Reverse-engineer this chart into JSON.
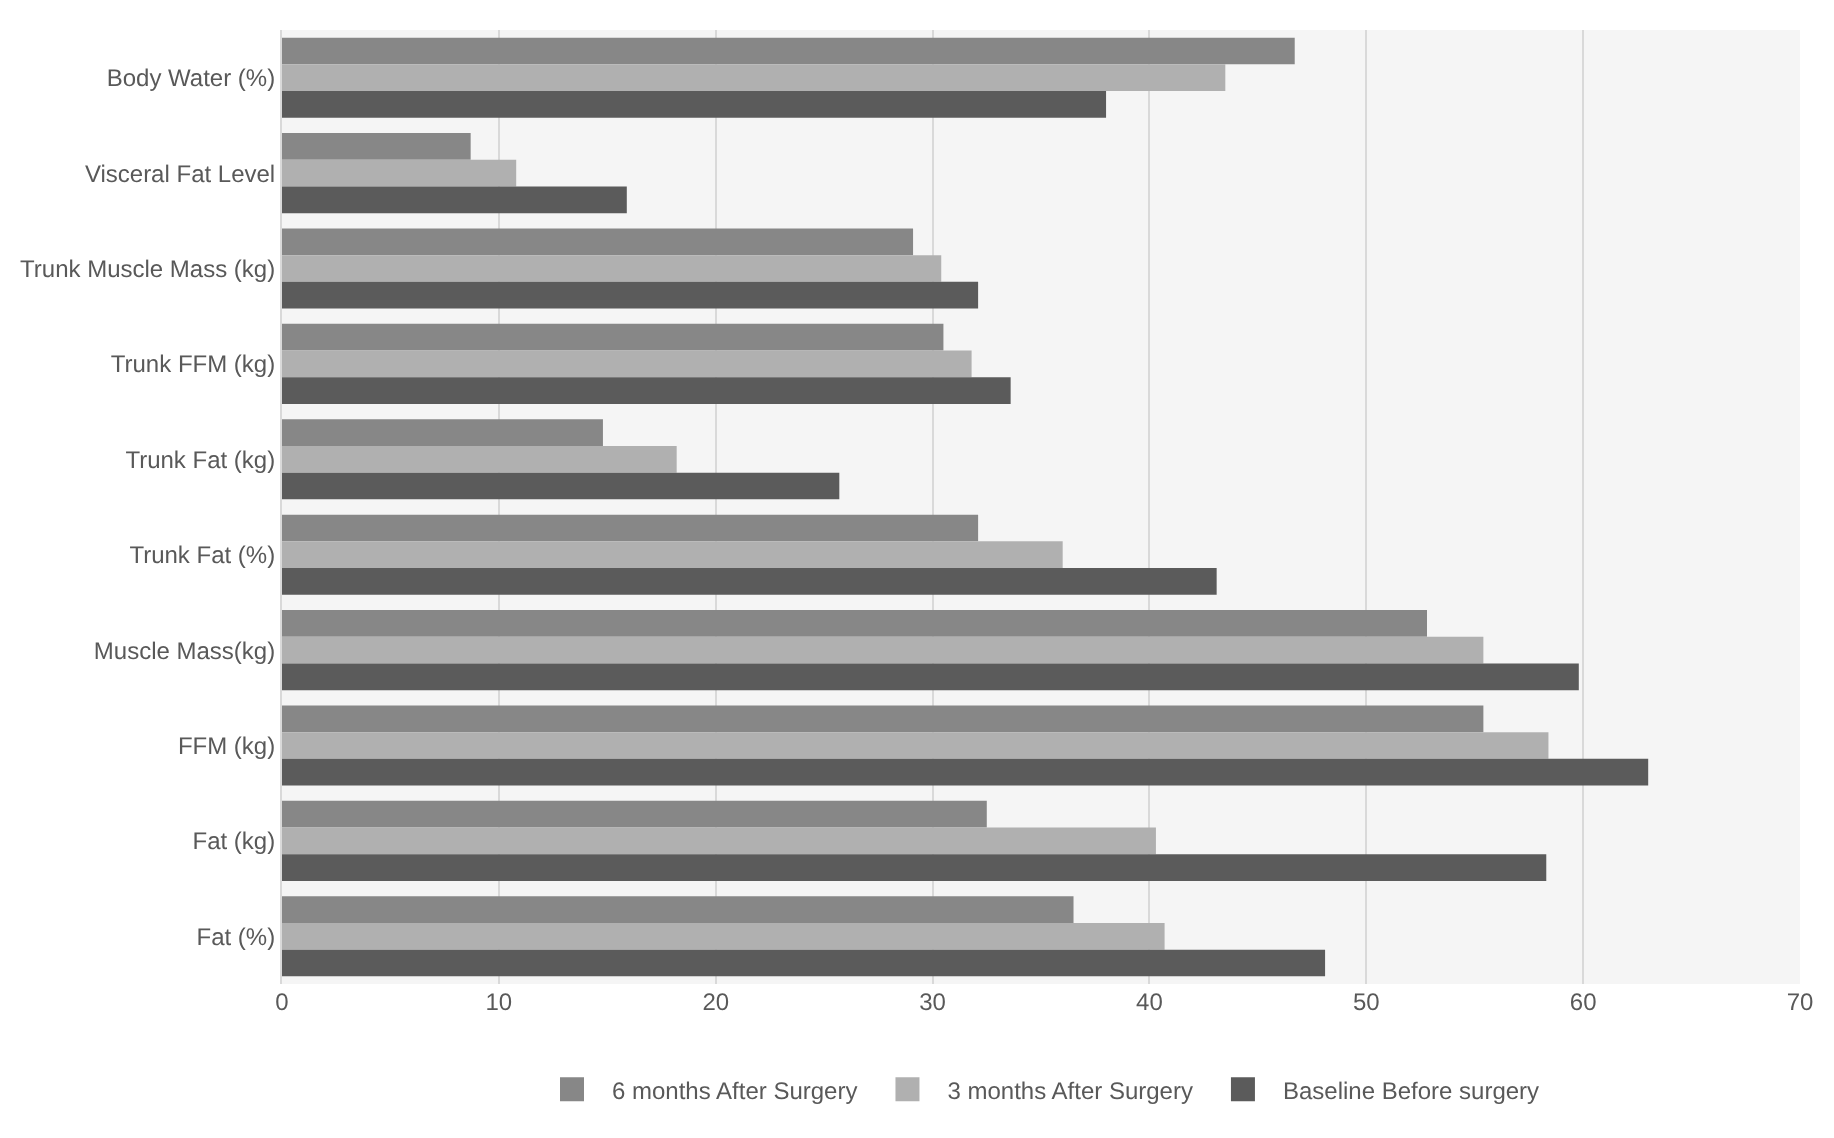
{
  "chart_data": {
    "type": "bar",
    "orientation": "horizontal",
    "categories": [
      "Body Water (%)",
      "Visceral Fat Level",
      "Trunk Muscle Mass (kg)",
      "Trunk FFM (kg)",
      "Trunk Fat (kg)",
      "Trunk Fat (%)",
      "Muscle Mass(kg)",
      "FFM (kg)",
      "Fat (kg)",
      "Fat (%)"
    ],
    "series": [
      {
        "name": "6 months After Surgery",
        "color": "#878787",
        "values": [
          46.7,
          8.7,
          29.1,
          30.5,
          14.8,
          32.1,
          52.8,
          55.4,
          32.5,
          36.5
        ]
      },
      {
        "name": "3 months After Surgery",
        "color": "#b0b0b0",
        "values": [
          43.5,
          10.8,
          30.4,
          31.8,
          18.2,
          36.0,
          55.4,
          58.4,
          40.3,
          40.7
        ]
      },
      {
        "name": "Baseline Before surgery",
        "color": "#5b5b5b",
        "values": [
          38.0,
          15.9,
          32.1,
          33.6,
          25.7,
          43.1,
          59.8,
          63.0,
          58.3,
          48.1
        ]
      }
    ],
    "xlim": [
      0,
      70
    ],
    "xticks": [
      0,
      10,
      20,
      30,
      40,
      50,
      60,
      70
    ],
    "grid": "x",
    "legend": "bottom"
  }
}
